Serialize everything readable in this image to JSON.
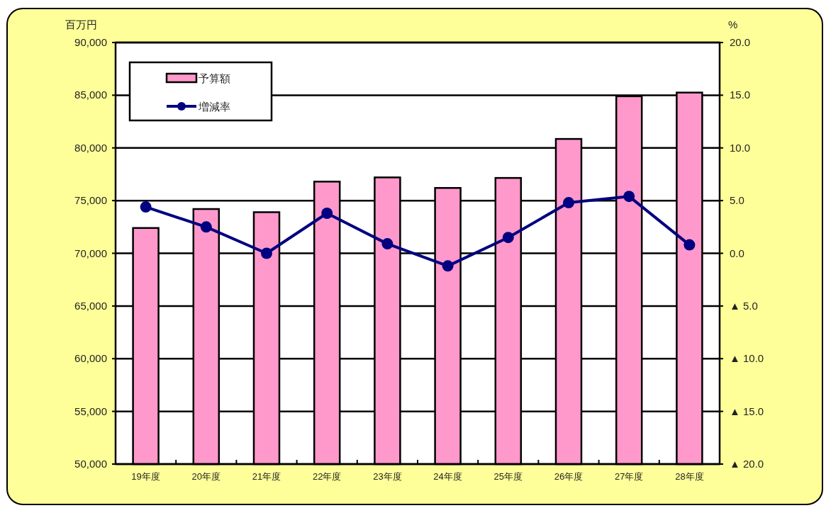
{
  "chart_data": {
    "type": "bar",
    "ylabel": "百万円",
    "y2label": "%",
    "categories": [
      "19年度",
      "20年度",
      "21年度",
      "22年度",
      "23年度",
      "24年度",
      "25年度",
      "26年度",
      "27年度",
      "28年度"
    ],
    "series": [
      {
        "name": "予算額",
        "color": "#ff99cc",
        "values": [
          72400,
          74200,
          73900,
          76800,
          77200,
          76200,
          77150,
          80850,
          84900,
          85250
        ]
      },
      {
        "name": "増減率",
        "type": "line",
        "axis": "y2",
        "color": "#000080",
        "marker": "circle",
        "values": [
          4.4,
          2.5,
          0.0,
          3.8,
          0.9,
          -1.2,
          1.5,
          4.8,
          5.4,
          0.8
        ]
      }
    ],
    "ylim": [
      50000,
      90000
    ],
    "yticks": [
      {
        "value": 50000,
        "label": "50,000"
      },
      {
        "value": 55000,
        "label": "55,000"
      },
      {
        "value": 60000,
        "label": "60,000"
      },
      {
        "value": 65000,
        "label": "65,000"
      },
      {
        "value": 70000,
        "label": "70,000"
      },
      {
        "value": 75000,
        "label": "75,000"
      },
      {
        "value": 80000,
        "label": "80,000"
      },
      {
        "value": 85000,
        "label": "85,000"
      },
      {
        "value": 90000,
        "label": "90,000"
      }
    ],
    "y2lim": [
      -20,
      20
    ],
    "y2ticks": [
      {
        "value": -20,
        "label": "▲ 20.0"
      },
      {
        "value": -15,
        "label": "▲ 15.0"
      },
      {
        "value": -10,
        "label": "▲ 10.0"
      },
      {
        "value": -5,
        "label": "▲ 5.0"
      },
      {
        "value": 0,
        "label": "0.0"
      },
      {
        "value": 5,
        "label": "5.0"
      },
      {
        "value": 10,
        "label": "10.0"
      },
      {
        "value": 15,
        "label": "15.0"
      },
      {
        "value": 20,
        "label": "20.0"
      }
    ],
    "grid": "y",
    "legend": "top left"
  }
}
